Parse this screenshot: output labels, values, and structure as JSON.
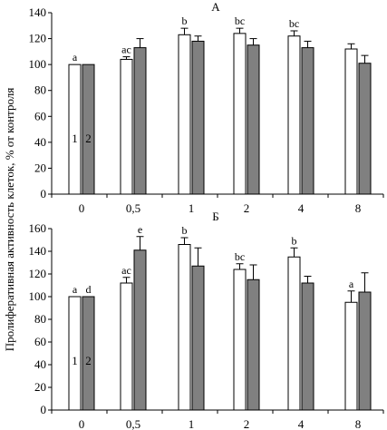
{
  "colors": {
    "series1": "#ffffff",
    "series2": "#808080",
    "stroke": "#000000"
  },
  "ylabel": "Пролиферативная активность клеток, % от контроля",
  "series_labels": [
    "1",
    "2"
  ],
  "chart_data": [
    {
      "type": "bar",
      "title": "А",
      "ylim": [
        0,
        140
      ],
      "yticks": [
        0,
        20,
        40,
        60,
        80,
        100,
        120,
        140
      ],
      "categories": [
        "0",
        "0,5",
        "1",
        "2",
        "4",
        "8"
      ],
      "series": [
        {
          "values": [
            100,
            104,
            123,
            124,
            122,
            112
          ],
          "errors": [
            0,
            2,
            5,
            4,
            4,
            4
          ],
          "labels": [
            "a",
            "ac",
            "b",
            "bc",
            "bc",
            ""
          ]
        },
        {
          "values": [
            100,
            113,
            118,
            115,
            113,
            101
          ],
          "errors": [
            0,
            7,
            4,
            5,
            5,
            6
          ],
          "labels": [
            "",
            "",
            "",
            "",
            "",
            ""
          ]
        }
      ],
      "grid": false
    },
    {
      "type": "bar",
      "title": "Б",
      "ylim": [
        0,
        160
      ],
      "yticks": [
        0,
        20,
        40,
        60,
        80,
        100,
        120,
        140,
        160
      ],
      "categories": [
        "0",
        "0,5",
        "1",
        "2",
        "4",
        "8"
      ],
      "series": [
        {
          "values": [
            100,
            112,
            146,
            124,
            135,
            95
          ],
          "errors": [
            0,
            5,
            6,
            5,
            8,
            10
          ],
          "labels": [
            "a",
            "ac",
            "b",
            "bc",
            "b",
            "a"
          ]
        },
        {
          "values": [
            100,
            141,
            127,
            115,
            112,
            104
          ],
          "errors": [
            0,
            12,
            16,
            13,
            6,
            17
          ],
          "labels": [
            "d",
            "e",
            "",
            "",
            "",
            ""
          ]
        }
      ],
      "grid": false
    }
  ]
}
